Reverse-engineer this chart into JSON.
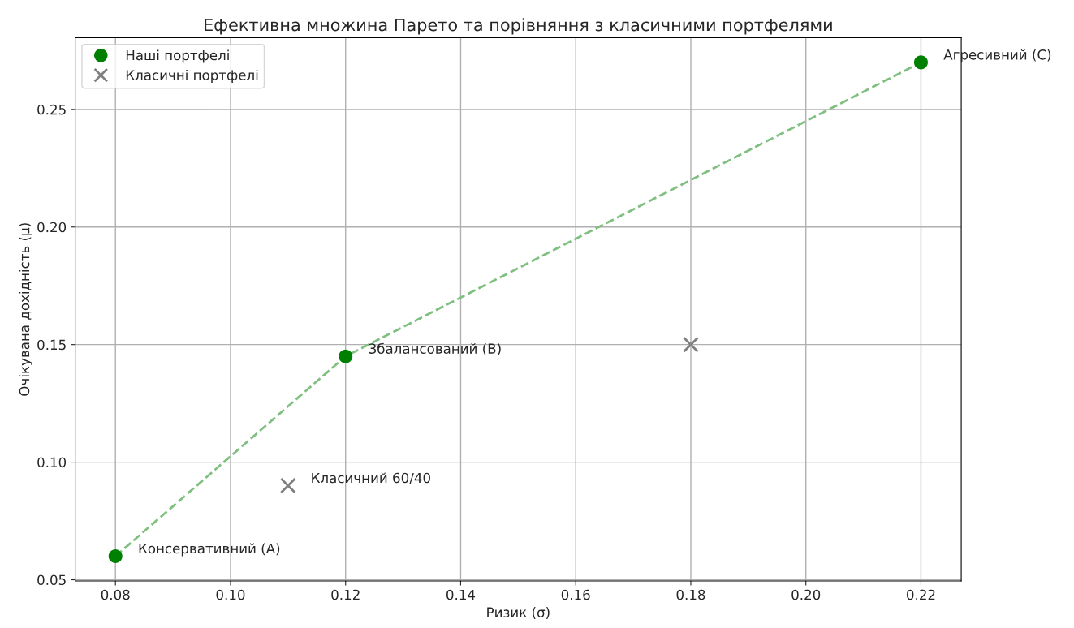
{
  "chart_data": {
    "type": "scatter",
    "title": "Ефективна множина Парето та порівняння з класичними портфелями",
    "xlabel": "Ризик (σ)",
    "ylabel": "Очікувана дохідність (μ)",
    "series": [
      {
        "type": "line",
        "color": "#7fbf7f",
        "line_style": "dashed",
        "marker": "none",
        "x": [
          0.08,
          0.12,
          0.22
        ],
        "values": [
          0.06,
          0.145,
          0.27
        ]
      },
      {
        "name": "Наші портфелі",
        "color": "#008000",
        "marker": "circle",
        "x": [
          0.08,
          0.12,
          0.22
        ],
        "values": [
          0.06,
          0.145,
          0.27
        ]
      },
      {
        "name": "Класичні портфелі",
        "color": "#808080",
        "marker": "cross",
        "x": [
          0.11,
          0.18
        ],
        "values": [
          0.09,
          0.15
        ]
      }
    ],
    "annotations": [
      {
        "text": "Консервативний (A)",
        "x": 0.08,
        "y": 0.06
      },
      {
        "text": "Збалансований (B)",
        "x": 0.12,
        "y": 0.145
      },
      {
        "text": "Агресивний (C)",
        "x": 0.22,
        "y": 0.27
      },
      {
        "text": "Класичний 60/40",
        "x": 0.11,
        "y": 0.09
      }
    ],
    "xlim": [
      0.073,
      0.227
    ],
    "ylim": [
      0.0495,
      0.2805
    ],
    "xticks": [
      {
        "value": 0.08,
        "label": "0.08"
      },
      {
        "value": 0.1,
        "label": "0.10"
      },
      {
        "value": 0.12,
        "label": "0.12"
      },
      {
        "value": 0.14,
        "label": "0.14"
      },
      {
        "value": 0.16,
        "label": "0.16"
      },
      {
        "value": 0.18,
        "label": "0.18"
      },
      {
        "value": 0.2,
        "label": "0.20"
      },
      {
        "value": 0.22,
        "label": "0.22"
      }
    ],
    "yticks": [
      {
        "value": 0.05,
        "label": "0.05"
      },
      {
        "value": 0.1,
        "label": "0.10"
      },
      {
        "value": 0.15,
        "label": "0.15"
      },
      {
        "value": 0.2,
        "label": "0.20"
      },
      {
        "value": 0.25,
        "label": "0.25"
      }
    ],
    "grid": true,
    "legend": "top left"
  }
}
